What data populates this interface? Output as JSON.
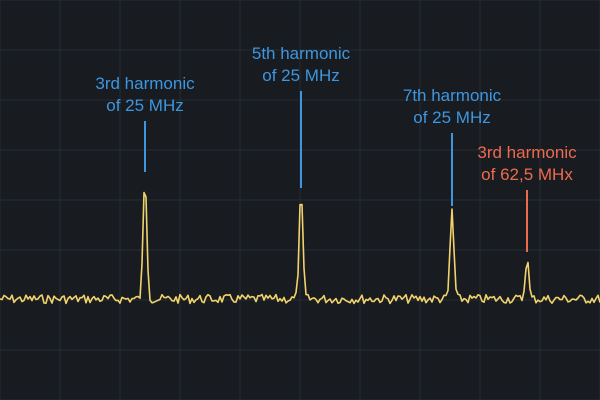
{
  "colors": {
    "background": "#181c21",
    "grid": "#262c33",
    "trace": "#f2d36b",
    "blue_annotation": "#3d96e0",
    "red_annotation": "#ee6a4e"
  },
  "annotations": [
    {
      "id": "h3-25",
      "lines": [
        "3rd harmonic",
        "of 25 MHz"
      ],
      "color": "#3d96e0"
    },
    {
      "id": "h5-25",
      "lines": [
        "5th harmonic",
        "of 25 MHz"
      ],
      "color": "#3d96e0"
    },
    {
      "id": "h7-25",
      "lines": [
        "7th harmonic",
        "of 25 MHz"
      ],
      "color": "#3d96e0"
    },
    {
      "id": "h3-625",
      "lines": [
        "3rd harmonic",
        "of 62,5 MHx"
      ],
      "color": "#ee6a4e"
    }
  ]
}
